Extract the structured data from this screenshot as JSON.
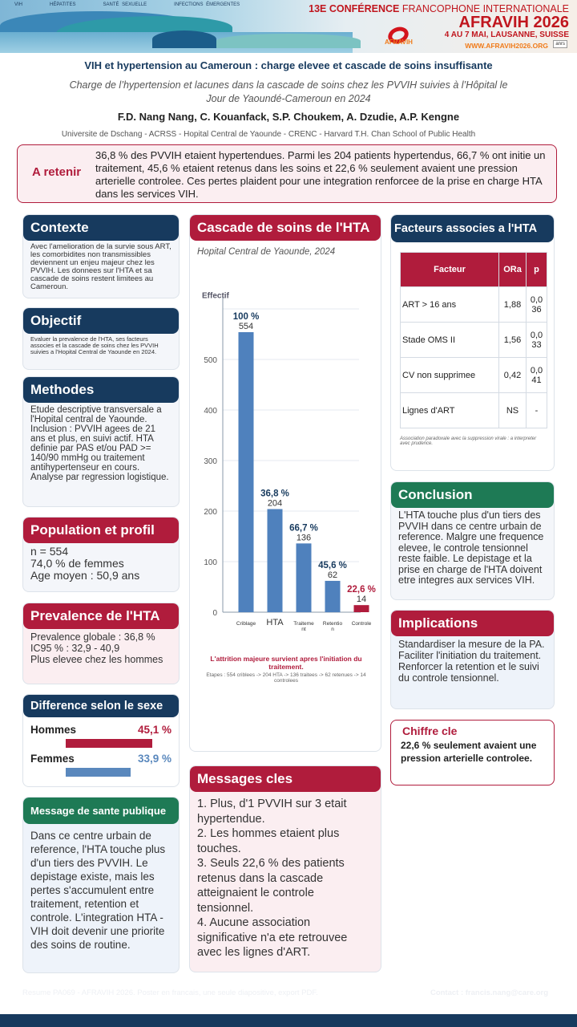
{
  "banner": {
    "topics": [
      "VIH",
      "HÉPATITES",
      "SANTÉ SEXUELLE",
      "INFECTIONS ÉMERGENTES"
    ],
    "conference_num": "13E",
    "conference": "CONFÉRENCE",
    "conference_rest": "FRANCOPHONE INTERNATIONALE",
    "event": "AFRAVIH 2026",
    "dates": "4 AU 7 MAI, LAUSANNE, SUISSE",
    "url": "WWW.AFRAVIH2026.ORG",
    "logo": "AFRAVIH",
    "partner": "anrs"
  },
  "title": "VIH et hypertension au Cameroun : charge elevee et cascade de soins insuffisante",
  "subtitle": "Charge de l’hypertension et lacunes dans la cascade de soins chez les PVVIH suivies à l’Hôpital le Jour de Yaoundé-Cameroun en 2024",
  "authors": "F.D. Nang Nang, C. Kouanfack, S.P. Choukem, A. Dzudie, A.P. Kengne",
  "affiliations": "Universite de Dschang - ACRSS - Hopital Central de Yaounde - CRENC - Harvard T.H. Chan School of Public Health",
  "retenir": {
    "label": "A retenir",
    "text": "36,8 % des PVVIH etaient hypertendues. Parmi les 204 patients hypertendus, 66,7 % ont initie un traitement, 45,6 % etaient retenus dans les soins et 22,6 % seulement avaient une pression arterielle controlee. Ces pertes plaident pour une integration renforcee de la prise en charge HTA dans les services VIH."
  },
  "contexte": {
    "title": "Contexte",
    "text": "Avec l'amelioration de la survie sous ART, les comorbidites non transmissibles deviennent un enjeu majeur chez les PVVIH. Les donnees sur l'HTA et sa cascade de soins restent limitees au Cameroun."
  },
  "objectif": {
    "title": "Objectif",
    "text": "Evaluer la prevalence de l'HTA, ses facteurs associes et la cascade de soins chez les PVVIH suivies a l'Hopital Central de Yaounde en 2024."
  },
  "methodes": {
    "title": "Methodes",
    "text": "Etude descriptive transversale a l'Hopital central de Yaounde. Inclusion : PVVIH agees de 21 ans et plus, en suivi actif. HTA definie par PAS et/ou PAD >= 140/90 mmHg ou traitement antihypertenseur en cours. Analyse par regression logistique."
  },
  "population": {
    "title": "Population et profil",
    "lines": [
      "n = 554",
      "74,0 % de femmes",
      "Age moyen : 50,9 ans"
    ]
  },
  "prevalence": {
    "title": "Prevalence de l'HTA",
    "lines": [
      "Prevalence globale : 36,8 %",
      "IC95 % : 32,9 - 40,9",
      "Plus elevee chez les hommes"
    ]
  },
  "sexe": {
    "title": "Difference selon le sexe",
    "rows": [
      {
        "label": "Hommes",
        "value": "45,1 %",
        "pct": 45.1,
        "color": "#b01c3c"
      },
      {
        "label": "Femmes",
        "value": "33,9 %",
        "pct": 33.9,
        "color": "#5a88bd"
      }
    ]
  },
  "sante": {
    "title": "Message de sante publique",
    "text": "Dans ce centre urbain de reference, l'HTA touche plus d'un tiers des PVVIH. Le depistage existe, mais les pertes s'accumulent entre traitement, retention et controle. L'integration HTA - VIH doit devenir une priorite des soins de routine."
  },
  "cascade": {
    "title": "Cascade de soins de l'HTA",
    "subtitle": "Hopital Central de Yaounde, 2024",
    "note": "L'attrition majeure survient apres l'initiation du traitement.",
    "steps": "Etapes : 554 criblees -> 204 HTA -> 136 traitees -> 62 retenues -> 14 controlees"
  },
  "chart_data": {
    "type": "bar",
    "ylabel": "Effectif",
    "ylim": [
      0,
      620
    ],
    "yticks": [
      0,
      100,
      200,
      300,
      400,
      500
    ],
    "grid": true,
    "categories": [
      "Criblage",
      "HTA",
      "Traitement",
      "Retention",
      "Controle"
    ],
    "category_labels": [
      [
        "Criblage"
      ],
      [
        "HTA"
      ],
      [
        "Traiteme",
        "nt"
      ],
      [
        "Retentio",
        "n"
      ],
      [
        "Controle"
      ]
    ],
    "values": [
      554,
      204,
      136,
      62,
      14
    ],
    "percent_labels": [
      "100 %",
      "36,8 %",
      "66,7 %",
      "45,6 %",
      "22,6 %"
    ],
    "colors": [
      "#4f81bd",
      "#4f81bd",
      "#4f81bd",
      "#4f81bd",
      "#b01c3c"
    ]
  },
  "messages": {
    "title": "Messages cles",
    "items": [
      "1. Plus, d'1 PVVIH sur 3 etait hypertendue.",
      "2. Les hommes etaient plus touches.",
      "3. Seuls 22,6 % des patients retenus dans la cascade atteignaient le controle tensionnel.",
      "4. Aucune association significative n'a ete retrouvee avec les lignes d'ART."
    ]
  },
  "facteurs": {
    "title": "Facteurs associes a l'HTA",
    "headers": [
      "Facteur",
      "ORa",
      "p"
    ],
    "rows": [
      [
        "ART > 16 ans",
        "1,88",
        "0,036"
      ],
      [
        "Stade OMS II",
        "1,56",
        "0,033"
      ],
      [
        "CV non supprimee",
        "0,42",
        "0,041"
      ],
      [
        "Lignes d'ART",
        "NS",
        "-"
      ]
    ],
    "note": "Association paradoxale avec la suppression virale : a interpreter avec prudence."
  },
  "conclusion": {
    "title": "Conclusion",
    "text": "L'HTA touche plus d'un tiers des PVVIH dans ce centre urbain de reference. Malgre une frequence elevee, le controle tensionnel reste faible. Le depistage et la prise en charge de l'HTA doivent etre integres aux services VIH."
  },
  "implications": {
    "title": "Implications",
    "text": "Standardiser la mesure de la PA. Faciliter l'initiation du traitement. Renforcer la retention et le suivi du controle tensionnel."
  },
  "chiffre": {
    "title": "Chiffre cle",
    "text": "22,6 % seulement avaient une pression arterielle controlee."
  },
  "footer": {
    "left": "Resume PA069 - AFRAVIH 2026. Poster en francais, une seule diapositive, export PDF.",
    "right": "Contact : francis.nang@care.org"
  }
}
